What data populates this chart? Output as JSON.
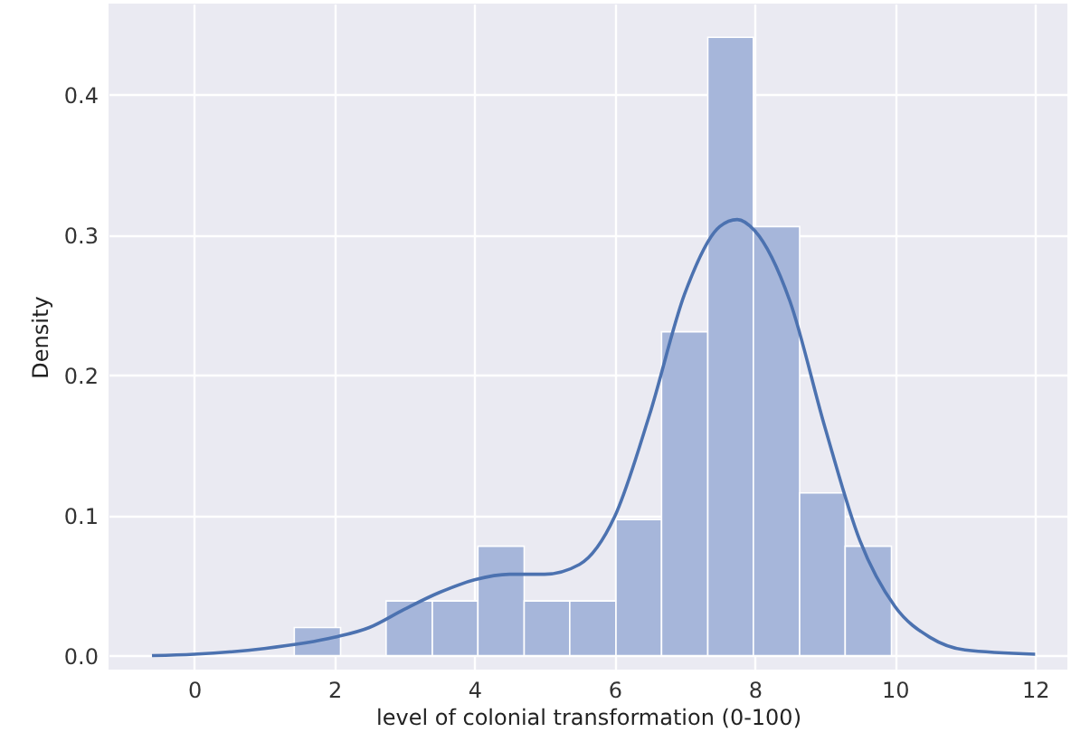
{
  "chart_data": {
    "type": "histogram",
    "xlabel": "level of colonial transformation (0-100)",
    "ylabel": "Density",
    "xlim": [
      -1.22,
      12.46
    ],
    "ylim": [
      -0.01,
      0.465
    ],
    "xticks": [
      0,
      2,
      4,
      6,
      8,
      10,
      12
    ],
    "yticks": [
      {
        "value": 0,
        "label": "0.0"
      },
      0.1,
      0.2,
      0.3,
      0.4
    ],
    "grid": true,
    "series": [
      {
        "type": "histogram",
        "color": "#a6b6da",
        "bins": [
          1.43,
          2.09,
          2.74,
          3.4,
          4.05,
          4.71,
          5.36,
          6.02,
          6.67,
          7.33,
          7.98,
          8.64,
          9.29,
          9.95
        ],
        "values": [
          0.02,
          0,
          0.039,
          0.039,
          0.078,
          0.039,
          0.039,
          0.097,
          0.231,
          0.441,
          0.306,
          0.116,
          0.078
        ]
      },
      {
        "type": "line",
        "color": "#4c72b0",
        "x": [
          -0.6,
          0,
          1,
          2,
          2.5,
          3,
          3.5,
          4,
          4.5,
          5,
          5.5,
          6,
          6.5,
          7,
          7.5,
          7.75,
          8,
          8.5,
          9,
          9.5,
          10,
          10.5,
          11,
          12
        ],
        "values": [
          0,
          0.001,
          0.005,
          0.013,
          0.02,
          0.033,
          0.045,
          0.054,
          0.058,
          0.058,
          0.065,
          0.099,
          0.172,
          0.258,
          0.306,
          0.311,
          0.303,
          0.253,
          0.163,
          0.082,
          0.035,
          0.013,
          0.004,
          0.001
        ]
      }
    ]
  }
}
